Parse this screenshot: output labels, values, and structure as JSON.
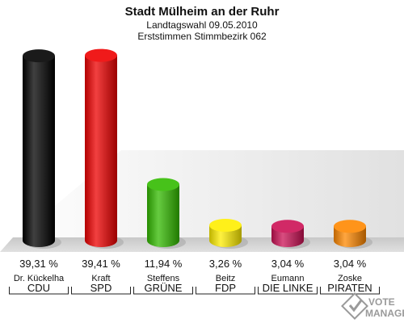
{
  "chart_data": {
    "type": "bar",
    "title": "Stadt Mülheim an der Ruhr",
    "subtitle": "Landtagswahl 09.05.2010",
    "subtitle2": "Erststimmen Stimmbezirk 062",
    "ylim": [
      0,
      42
    ],
    "bars": [
      {
        "candidate": "Dr. Kückelha",
        "party": "CDU",
        "value": 39.31,
        "label": "39,31 %",
        "color": "#000000"
      },
      {
        "candidate": "Kraft",
        "party": "SPD",
        "value": 39.41,
        "label": "39,41 %",
        "color": "#ee0000"
      },
      {
        "candidate": "Steffens",
        "party": "GRÜNE",
        "value": 11.94,
        "label": "11,94 %",
        "color": "#33bb00"
      },
      {
        "candidate": "Beitz",
        "party": "FDP",
        "value": 3.26,
        "label": "3,26 %",
        "color": "#ffee00"
      },
      {
        "candidate": "Eumann",
        "party": "DIE LINKE",
        "value": 3.04,
        "label": "3,04 %",
        "color": "#cc1155"
      },
      {
        "candidate": "Zoske",
        "party": "PIRATEN",
        "value": 3.04,
        "label": "3,04 %",
        "color": "#ff8800"
      }
    ]
  },
  "watermark": {
    "line1": "VOTE",
    "line2": "MANAGER"
  }
}
